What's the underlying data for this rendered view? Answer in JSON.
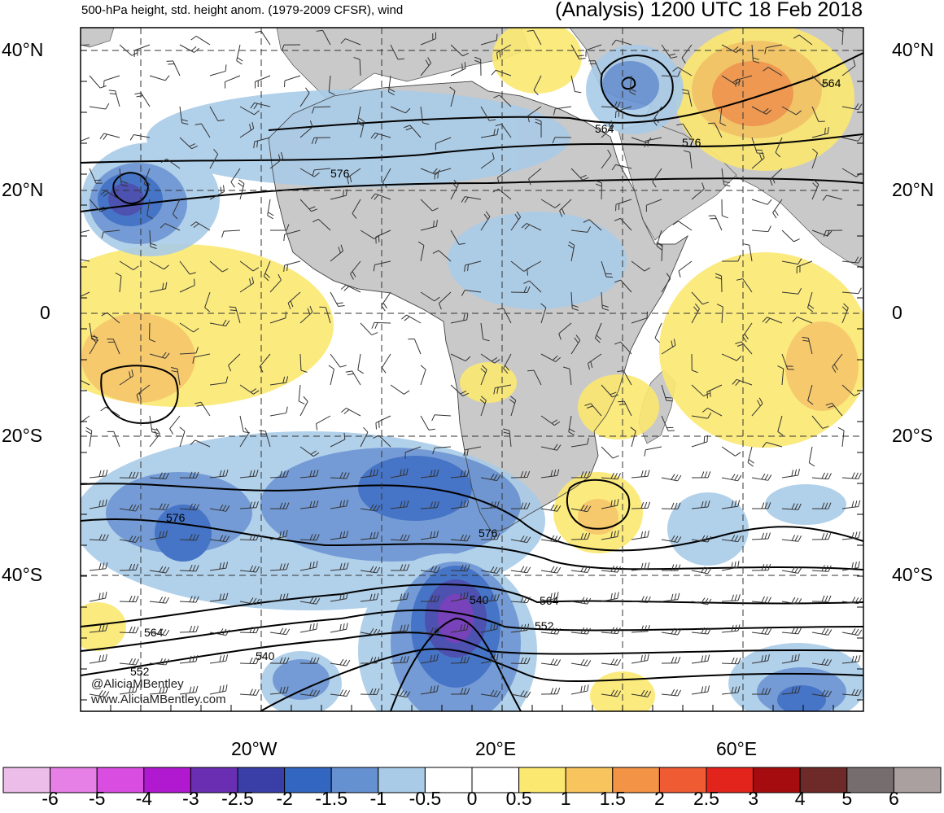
{
  "title": {
    "left": "500-hPa height, std. height anom. (1979-2009 CFSR), wind",
    "right": "(Analysis) 1200 UTC 18 Feb 2018"
  },
  "lat_labels": [
    "40°N",
    "20°N",
    "0",
    "20°S",
    "40°S"
  ],
  "lon_labels": [
    "20°W",
    "20°E",
    "60°E"
  ],
  "contour_labels": [
    "576",
    "564",
    "576",
    "564",
    "576",
    "576",
    "540",
    "564",
    "552",
    "564",
    "540",
    "552"
  ],
  "colorbar": {
    "labels": [
      "-6",
      "-5",
      "-4",
      "-3",
      "-2.5",
      "-2",
      "-1.5",
      "-1",
      "-0.5",
      "0",
      "0.5",
      "1",
      "1.5",
      "2",
      "2.5",
      "3",
      "4",
      "5",
      "6"
    ],
    "colors": [
      "#ebbde8",
      "#e67fe6",
      "#d94ee0",
      "#b019cf",
      "#6a2eb3",
      "#3a3fa8",
      "#3366c0",
      "#6691d1",
      "#a9cbe8",
      "#ffffff",
      "#ffffff",
      "#fbe870",
      "#f7c45e",
      "#f39345",
      "#ef5b33",
      "#e3241d",
      "#a50c0f",
      "#6d2a28",
      "#766e6e",
      "#aba0a0"
    ]
  },
  "credits": [
    "@AliciaMBentley",
    "www.AliciaMBentley.com"
  ],
  "colors": {
    "land": "#c9c9c9",
    "ocean": "#ffffff",
    "contour": "#000000"
  }
}
